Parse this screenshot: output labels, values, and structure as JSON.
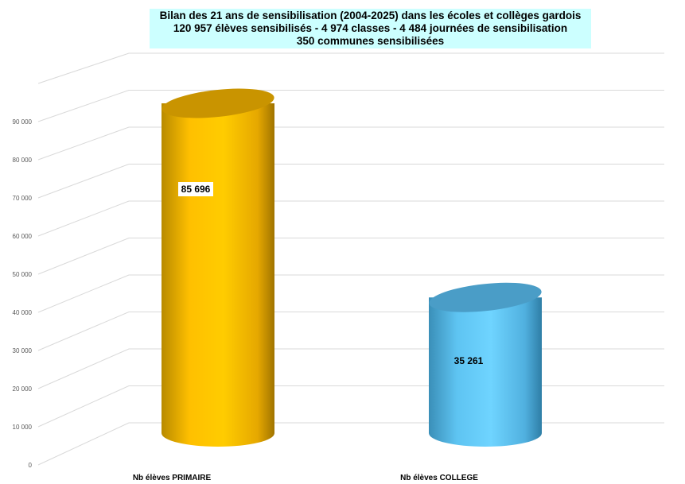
{
  "chart_data": {
    "type": "bar",
    "style": "3d-cylinder",
    "title_lines": [
      "Bilan des 21 ans de sensibilisation (2004-2025) dans les écoles et collèges gardois",
      "120 957 élèves sensibilisés - 4 974 classes - 4 484 journées de sensibilisation",
      "350 communes sensibilisées"
    ],
    "categories": [
      "Nb élèves PRIMAIRE",
      "Nb élèves COLLEGE"
    ],
    "values": [
      85696,
      35261
    ],
    "data_labels": [
      "85 696",
      "35 261"
    ],
    "colors": [
      "#ffc000",
      "#66ccff"
    ],
    "ylim": [
      0,
      100000
    ],
    "yticks": [
      0,
      10000,
      20000,
      30000,
      40000,
      50000,
      60000,
      70000,
      80000,
      90000
    ],
    "ytick_labels": [
      "0",
      "10 000",
      "20 000",
      "30 000",
      "40 000",
      "50 000",
      "60 000",
      "70 000",
      "80 000",
      "90 000"
    ],
    "grid": true,
    "legend": "none",
    "title_background": "#ccffff"
  }
}
